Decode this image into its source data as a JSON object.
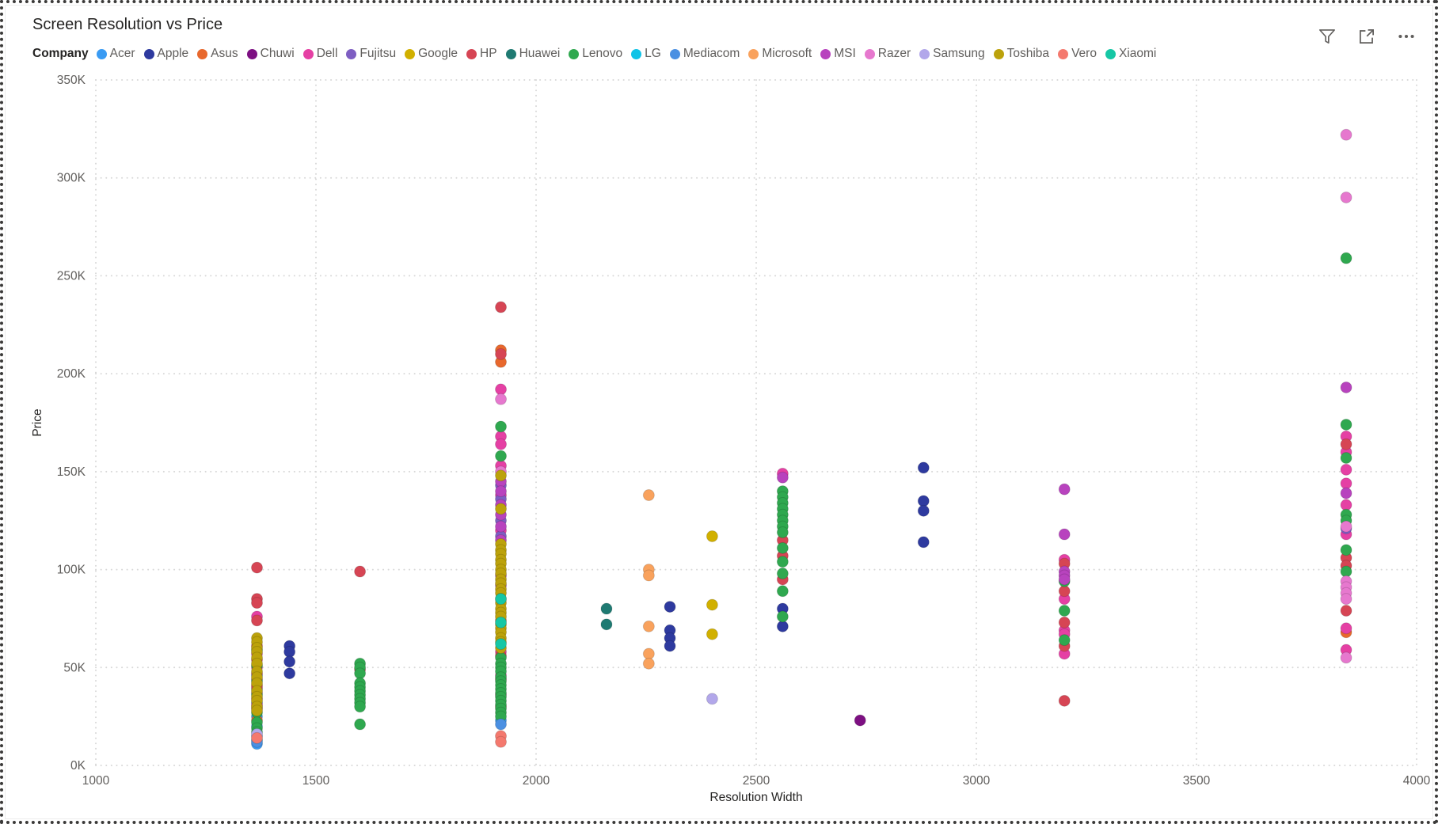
{
  "title": "Screen Resolution vs Price",
  "toolbar": {
    "filter_icon": "funnel-filter-icon",
    "focus_icon": "focus-mode-expand-icon",
    "more_icon": "more-options-ellipsis-icon"
  },
  "legend": {
    "title": "Company"
  },
  "chart_data": {
    "type": "scatter",
    "title": "Screen Resolution vs Price",
    "xlabel": "Resolution Width",
    "ylabel": "Price",
    "xlim": [
      1000,
      4000
    ],
    "ylim": [
      0,
      350
    ],
    "y_unit": "K",
    "grid": true,
    "legend_position": "top",
    "x_ticks": [
      {
        "v": 1000,
        "label": "1000"
      },
      {
        "v": 1500,
        "label": "1500"
      },
      {
        "v": 2000,
        "label": "2000"
      },
      {
        "v": 2500,
        "label": "2500"
      },
      {
        "v": 3000,
        "label": "3000"
      },
      {
        "v": 3500,
        "label": "3500"
      },
      {
        "v": 4000,
        "label": "4000"
      }
    ],
    "y_ticks": [
      {
        "v": 0,
        "label": "0K"
      },
      {
        "v": 50,
        "label": "50K"
      },
      {
        "v": 100,
        "label": "100K"
      },
      {
        "v": 150,
        "label": "150K"
      },
      {
        "v": 200,
        "label": "200K"
      },
      {
        "v": 250,
        "label": "250K"
      },
      {
        "v": 300,
        "label": "300K"
      },
      {
        "v": 350,
        "label": "350K"
      }
    ],
    "series": [
      {
        "name": "Acer",
        "color": "#3A9BF3",
        "points": [
          [
            1366,
            46
          ],
          [
            1366,
            39
          ],
          [
            1366,
            32
          ],
          [
            1366,
            25
          ],
          [
            1366,
            20
          ],
          [
            1366,
            15
          ],
          [
            1366,
            11
          ],
          [
            1920,
            23
          ]
        ]
      },
      {
        "name": "Apple",
        "color": "#2E3A9F",
        "points": [
          [
            1440,
            61
          ],
          [
            1440,
            58
          ],
          [
            1440,
            53
          ],
          [
            1440,
            47
          ],
          [
            2304,
            81
          ],
          [
            2304,
            69
          ],
          [
            2304,
            65
          ],
          [
            2304,
            61
          ],
          [
            2560,
            80
          ],
          [
            2560,
            71
          ],
          [
            2880,
            152
          ],
          [
            2880,
            135
          ],
          [
            2880,
            130
          ],
          [
            2880,
            114
          ]
        ]
      },
      {
        "name": "Asus",
        "color": "#E8682D",
        "points": [
          [
            1366,
            41
          ],
          [
            1366,
            30
          ],
          [
            1366,
            23
          ],
          [
            1920,
            212
          ],
          [
            1920,
            206
          ],
          [
            1920,
            74
          ],
          [
            3840,
            68
          ]
        ]
      },
      {
        "name": "Chuwi",
        "color": "#7D1082",
        "points": [
          [
            2736,
            23
          ]
        ]
      },
      {
        "name": "Dell",
        "color": "#E540A4",
        "points": [
          [
            1366,
            76
          ],
          [
            1366,
            57
          ],
          [
            1366,
            50
          ],
          [
            1366,
            44
          ],
          [
            1366,
            37
          ],
          [
            1366,
            31
          ],
          [
            1920,
            192
          ],
          [
            1920,
            168
          ],
          [
            1920,
            164
          ],
          [
            1920,
            153
          ],
          [
            1920,
            138
          ],
          [
            1920,
            120
          ],
          [
            1920,
            58
          ],
          [
            1920,
            46
          ],
          [
            1920,
            36
          ],
          [
            2560,
            149
          ],
          [
            3200,
            105
          ],
          [
            3200,
            85
          ],
          [
            3200,
            69
          ],
          [
            3200,
            67
          ],
          [
            3200,
            57
          ],
          [
            3840,
            168
          ],
          [
            3840,
            160
          ],
          [
            3840,
            151
          ],
          [
            3840,
            144
          ],
          [
            3840,
            133
          ],
          [
            3840,
            118
          ],
          [
            3840,
            70
          ],
          [
            3840,
            59
          ]
        ]
      },
      {
        "name": "Fujitsu",
        "color": "#7E5EC2",
        "points": [
          [
            1920,
            143
          ],
          [
            1920,
            136
          ],
          [
            1920,
            125
          ],
          [
            1920,
            117
          ],
          [
            3840,
            121
          ]
        ]
      },
      {
        "name": "Google",
        "color": "#D1B000",
        "points": [
          [
            2400,
            117
          ],
          [
            2400,
            82
          ],
          [
            2400,
            67
          ]
        ]
      },
      {
        "name": "HP",
        "color": "#D64554",
        "points": [
          [
            1366,
            101
          ],
          [
            1366,
            85
          ],
          [
            1366,
            83
          ],
          [
            1366,
            74
          ],
          [
            1366,
            61
          ],
          [
            1366,
            54
          ],
          [
            1366,
            47
          ],
          [
            1366,
            40
          ],
          [
            1366,
            34
          ],
          [
            1366,
            29
          ],
          [
            1600,
            99
          ],
          [
            1600,
            49
          ],
          [
            1920,
            234
          ],
          [
            1920,
            210
          ],
          [
            1920,
            56
          ],
          [
            1920,
            44
          ],
          [
            1920,
            30
          ],
          [
            2560,
            115
          ],
          [
            2560,
            107
          ],
          [
            2560,
            95
          ],
          [
            3200,
            103
          ],
          [
            3200,
            89
          ],
          [
            3200,
            73
          ],
          [
            3200,
            61
          ],
          [
            3200,
            33
          ],
          [
            3840,
            164
          ],
          [
            3840,
            106
          ],
          [
            3840,
            102
          ],
          [
            3840,
            79
          ]
        ]
      },
      {
        "name": "Huawei",
        "color": "#1F7A72",
        "points": [
          [
            2160,
            80
          ],
          [
            2160,
            72
          ]
        ]
      },
      {
        "name": "Lenovo",
        "color": "#2FA84F",
        "points": [
          [
            1366,
            59
          ],
          [
            1366,
            51
          ],
          [
            1366,
            43
          ],
          [
            1366,
            36
          ],
          [
            1366,
            27
          ],
          [
            1366,
            22
          ],
          [
            1366,
            19
          ],
          [
            1366,
            17
          ],
          [
            1600,
            52
          ],
          [
            1600,
            50
          ],
          [
            1600,
            47
          ],
          [
            1600,
            42
          ],
          [
            1600,
            40
          ],
          [
            1600,
            38
          ],
          [
            1600,
            36
          ],
          [
            1600,
            34
          ],
          [
            1600,
            32
          ],
          [
            1600,
            30
          ],
          [
            1600,
            21
          ],
          [
            1920,
            173
          ],
          [
            1920,
            158
          ],
          [
            1920,
            55
          ],
          [
            1920,
            52
          ],
          [
            1920,
            50
          ],
          [
            1920,
            48
          ],
          [
            1920,
            45
          ],
          [
            1920,
            43
          ],
          [
            1920,
            41
          ],
          [
            1920,
            39
          ],
          [
            1920,
            37
          ],
          [
            1920,
            35
          ],
          [
            1920,
            33
          ],
          [
            1920,
            31
          ],
          [
            1920,
            29
          ],
          [
            1920,
            27
          ],
          [
            1920,
            25
          ],
          [
            2560,
            140
          ],
          [
            2560,
            137
          ],
          [
            2560,
            134
          ],
          [
            2560,
            131
          ],
          [
            2560,
            128
          ],
          [
            2560,
            125
          ],
          [
            2560,
            122
          ],
          [
            2560,
            119
          ],
          [
            2560,
            111
          ],
          [
            2560,
            104
          ],
          [
            2560,
            98
          ],
          [
            2560,
            89
          ],
          [
            2560,
            76
          ],
          [
            3200,
            94
          ],
          [
            3200,
            79
          ],
          [
            3200,
            64
          ],
          [
            3840,
            259
          ],
          [
            3840,
            174
          ],
          [
            3840,
            157
          ],
          [
            3840,
            128
          ],
          [
            3840,
            125
          ],
          [
            3840,
            110
          ],
          [
            3840,
            99
          ]
        ]
      },
      {
        "name": "LG",
        "color": "#0FC3E7",
        "points": [
          [
            1366,
            13
          ]
        ]
      },
      {
        "name": "Mediacom",
        "color": "#4B90E2",
        "points": [
          [
            1366,
            12
          ],
          [
            1920,
            21
          ]
        ]
      },
      {
        "name": "Microsoft",
        "color": "#F9A25D",
        "points": [
          [
            2256,
            138
          ],
          [
            2256,
            100
          ],
          [
            2256,
            97
          ],
          [
            2256,
            71
          ],
          [
            2256,
            57
          ],
          [
            2256,
            52
          ]
        ]
      },
      {
        "name": "MSI",
        "color": "#B843BE",
        "points": [
          [
            1920,
            145
          ],
          [
            1920,
            140
          ],
          [
            1920,
            133
          ],
          [
            1920,
            128
          ],
          [
            1920,
            122
          ],
          [
            1920,
            115
          ],
          [
            1920,
            97
          ],
          [
            1920,
            92
          ],
          [
            2560,
            147
          ],
          [
            3200,
            141
          ],
          [
            3200,
            118
          ],
          [
            3200,
            99
          ],
          [
            3200,
            97
          ],
          [
            3200,
            95
          ],
          [
            3840,
            193
          ],
          [
            3840,
            139
          ]
        ]
      },
      {
        "name": "Razer",
        "color": "#E678CE",
        "points": [
          [
            1920,
            187
          ],
          [
            1920,
            150
          ],
          [
            3840,
            322
          ],
          [
            3840,
            290
          ],
          [
            3840,
            122
          ],
          [
            3840,
            94
          ],
          [
            3840,
            91
          ],
          [
            3840,
            88
          ],
          [
            3840,
            85
          ],
          [
            3840,
            55
          ]
        ]
      },
      {
        "name": "Samsung",
        "color": "#B2A7EA",
        "points": [
          [
            1366,
            16
          ],
          [
            2400,
            34
          ]
        ]
      },
      {
        "name": "Toshiba",
        "color": "#BCA20B",
        "points": [
          [
            1366,
            65
          ],
          [
            1366,
            63
          ],
          [
            1366,
            60
          ],
          [
            1366,
            58
          ],
          [
            1366,
            55
          ],
          [
            1366,
            52
          ],
          [
            1366,
            48
          ],
          [
            1366,
            45
          ],
          [
            1366,
            42
          ],
          [
            1366,
            38
          ],
          [
            1366,
            35
          ],
          [
            1366,
            33
          ],
          [
            1366,
            30
          ],
          [
            1366,
            28
          ],
          [
            1920,
            148
          ],
          [
            1920,
            131
          ],
          [
            1920,
            113
          ],
          [
            1920,
            110
          ],
          [
            1920,
            108
          ],
          [
            1920,
            105
          ],
          [
            1920,
            103
          ],
          [
            1920,
            100
          ],
          [
            1920,
            98
          ],
          [
            1920,
            95
          ],
          [
            1920,
            93
          ],
          [
            1920,
            90
          ],
          [
            1920,
            88
          ],
          [
            1920,
            85
          ],
          [
            1920,
            83
          ],
          [
            1920,
            80
          ],
          [
            1920,
            78
          ],
          [
            1920,
            76
          ],
          [
            1920,
            72
          ],
          [
            1920,
            70
          ],
          [
            1920,
            68
          ],
          [
            1920,
            65
          ],
          [
            1920,
            63
          ],
          [
            1920,
            60
          ]
        ]
      },
      {
        "name": "Vero",
        "color": "#F4796E",
        "points": [
          [
            1366,
            14
          ],
          [
            1920,
            15
          ],
          [
            1920,
            12
          ]
        ]
      },
      {
        "name": "Xiaomi",
        "color": "#16C7A5",
        "points": [
          [
            1920,
            85
          ],
          [
            1920,
            73
          ],
          [
            1920,
            62
          ]
        ]
      }
    ]
  }
}
